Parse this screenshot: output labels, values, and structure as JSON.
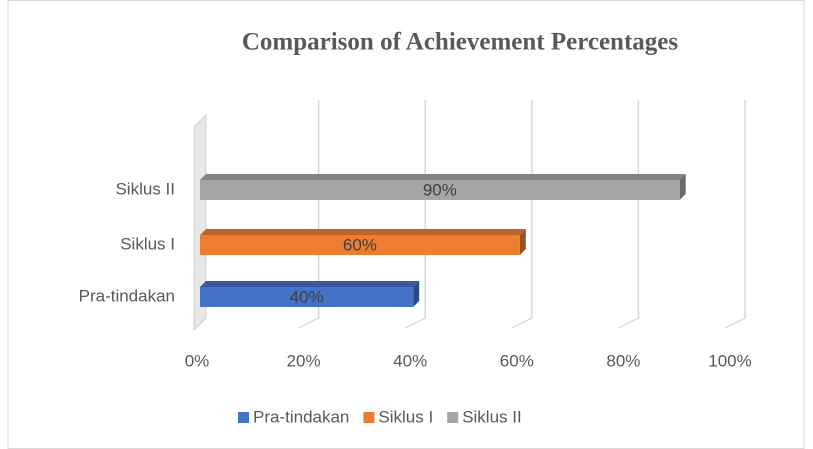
{
  "chart_data": {
    "type": "bar",
    "orientation": "horizontal",
    "title": "Comparison of Achievement Percentages",
    "categories": [
      "Pra-tindakan",
      "Siklus I",
      "Siklus II"
    ],
    "values": [
      40,
      60,
      90
    ],
    "value_labels": [
      "40%",
      "60%",
      "90%"
    ],
    "colors": [
      "#4472c4",
      "#ed7d31",
      "#a5a5a5"
    ],
    "xlim": [
      0,
      100
    ],
    "xticks": [
      {
        "value": 0,
        "label": "0%"
      },
      {
        "value": 20,
        "label": "20%"
      },
      {
        "value": 40,
        "label": "40%"
      },
      {
        "value": 60,
        "label": "60%"
      },
      {
        "value": 80,
        "label": "80%"
      },
      {
        "value": 100,
        "label": "100%"
      }
    ],
    "grid": true,
    "legend": "bottom"
  }
}
